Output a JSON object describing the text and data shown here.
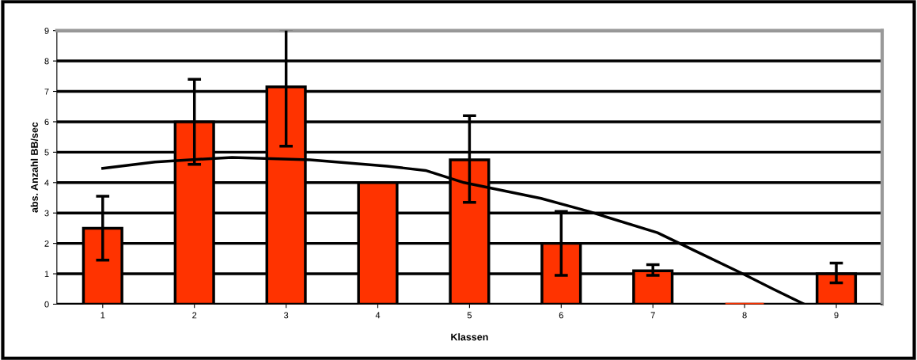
{
  "chart_data": {
    "type": "bar",
    "xlabel": "Klassen",
    "ylabel": "abs. Anzahl BB/sec",
    "x": [
      1,
      2,
      3,
      4,
      5,
      6,
      7,
      8,
      9
    ],
    "xlim": [
      0.5,
      9.5
    ],
    "xticks": [
      1,
      2,
      3,
      4,
      5,
      6,
      7,
      8,
      9
    ],
    "ylim": [
      0,
      9
    ],
    "yticks": [
      0,
      1,
      2,
      3,
      4,
      5,
      6,
      7,
      8,
      9
    ],
    "grid": "y",
    "series": [
      {
        "color": "#ff3300",
        "values": [
          2.5,
          6,
          7.15,
          4,
          4.75,
          2,
          1.1,
          0,
          1
        ],
        "errors": [
          [
            1.45,
            3.55
          ],
          [
            4.6,
            7.4
          ],
          [
            5.2,
            9.05
          ],
          null,
          [
            3.35,
            6.2
          ],
          [
            0.95,
            3.05
          ],
          [
            0.95,
            1.3
          ],
          null,
          [
            0.7,
            1.35
          ]
        ]
      },
      {
        "type": "line",
        "color": "#000000",
        "x": [
          1,
          1.57,
          2.41,
          3.26,
          4.1,
          4.52,
          4.94,
          5.78,
          6.29,
          7.05,
          7.47,
          7.98,
          8.31,
          8.65
        ],
        "values": [
          4.47,
          4.68,
          4.83,
          4.75,
          4.54,
          4.4,
          4.0,
          3.48,
          3.06,
          2.35,
          1.74,
          1.0,
          0.5,
          0
        ]
      }
    ]
  }
}
